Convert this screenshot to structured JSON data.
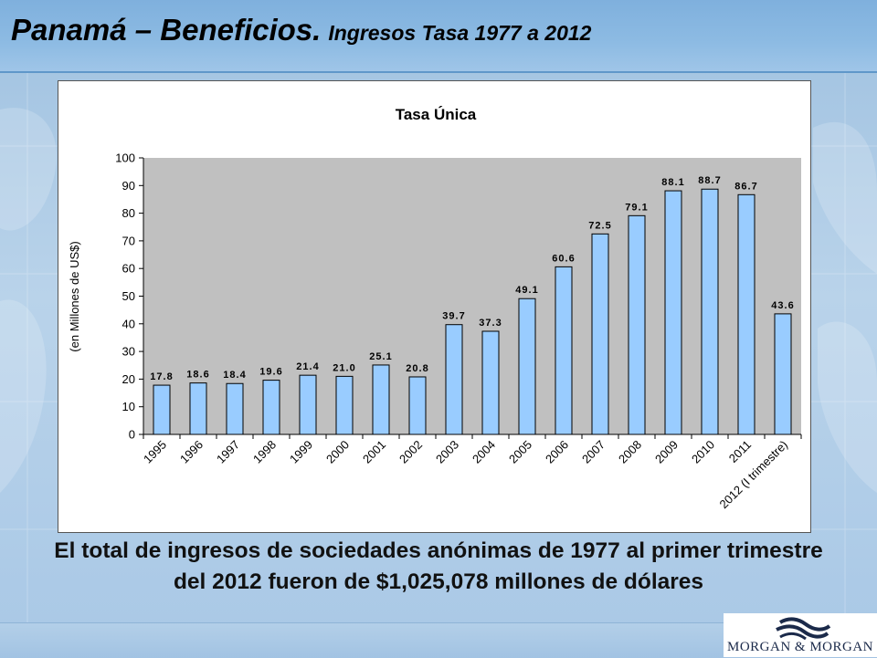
{
  "slide": {
    "title_main": "Panamá – Beneficios.",
    "title_sub": "Ingresos Tasa 1977 a 2012",
    "summary": "El total de ingresos de sociedades anónimas de 1977 al primer trimestre del 2012 fueron de $1,025,078 millones de dólares",
    "logo_text": "MORGAN & MORGAN"
  },
  "colors": {
    "bar_fill": "#99ccff",
    "bar_stroke": "#000000",
    "plot_bg": "#c0c0c0",
    "title_bar": "#8dbbe3"
  },
  "chart_data": {
    "type": "bar",
    "title": "Tasa Única",
    "ylabel": "(en Millones de US$)",
    "xlabel": "",
    "ylim": [
      0,
      100
    ],
    "yticks": [
      "0",
      "10",
      "20",
      "30",
      "40",
      "50",
      "60",
      "70",
      "80",
      "90",
      "100"
    ],
    "grid": false,
    "categories": [
      "1995",
      "1996",
      "1997",
      "1998",
      "1999",
      "2000",
      "2001",
      "2002",
      "2003",
      "2004",
      "2005",
      "2006",
      "2007",
      "2008",
      "2009",
      "2010",
      "2011",
      "2012 (I trimestre)"
    ],
    "values": [
      17.8,
      18.6,
      18.4,
      19.6,
      21.4,
      21.0,
      25.1,
      20.8,
      39.7,
      37.3,
      49.1,
      60.6,
      72.5,
      79.1,
      88.1,
      88.7,
      86.7,
      43.6
    ],
    "value_labels": [
      "17.8",
      "18.6",
      "18.4",
      "19.6",
      "21.4",
      "21.0",
      "25.1",
      "20.8",
      "39.7",
      "37.3",
      "49.1",
      "60.6",
      "72.5",
      "79.1",
      "88.1",
      "88.7",
      "86.7",
      "43.6"
    ]
  }
}
